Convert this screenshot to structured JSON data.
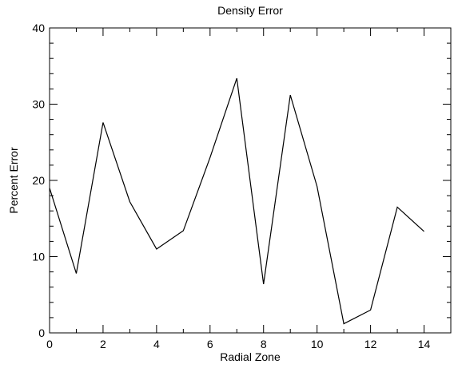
{
  "chart_data": {
    "type": "line",
    "title": "Density Error",
    "xlabel": "Radial Zone",
    "ylabel": "Percent Error",
    "xlim": [
      0,
      15
    ],
    "ylim": [
      0,
      40
    ],
    "x_major_ticks": [
      0,
      2,
      4,
      6,
      8,
      10,
      12,
      14
    ],
    "x_minor_ticks": [
      1,
      3,
      5,
      7,
      9,
      11,
      13
    ],
    "y_major_ticks": [
      0,
      10,
      20,
      30,
      40
    ],
    "y_minor_ticks": [
      2,
      4,
      6,
      8,
      12,
      14,
      16,
      18,
      22,
      24,
      26,
      28,
      32,
      34,
      36,
      38
    ],
    "grid": false,
    "line_color": "#000000",
    "series": [
      {
        "x": [
          0,
          1,
          2,
          3,
          4,
          5,
          6,
          7,
          8,
          9,
          10,
          11,
          12,
          13,
          14
        ],
        "values": [
          19.0,
          7.8,
          27.6,
          17.2,
          11.0,
          13.4,
          23.0,
          33.4,
          6.4,
          31.2,
          19.2,
          1.2,
          3.0,
          16.5,
          13.3
        ]
      }
    ]
  }
}
